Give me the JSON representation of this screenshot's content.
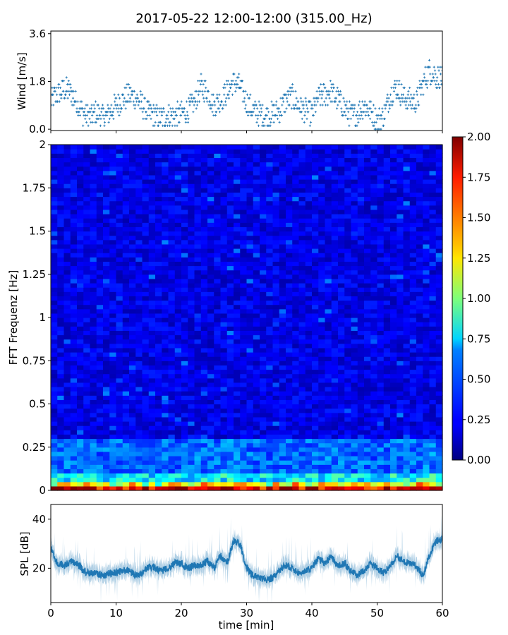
{
  "title": "2017-05-22 12:00-12:00 (315.00_Hz)",
  "chart_data": [
    {
      "type": "scatter",
      "panel": "wind",
      "ylabel": "Wind [m/s]",
      "xlabel": "",
      "xlim": [
        0,
        60
      ],
      "ylim": [
        -0.05,
        3.7
      ],
      "yticks": [
        "0.0",
        "1.8",
        "3.6"
      ],
      "ytick_values": [
        0.0,
        1.8,
        3.6
      ],
      "xtick_values": [
        0,
        10,
        20,
        30,
        40,
        50,
        60
      ],
      "x_ticklabels_shown": false,
      "color": "#1f77b4",
      "marker": "+",
      "trend_x": [
        0,
        1,
        2,
        3,
        4,
        5,
        6,
        7,
        8,
        9,
        10,
        11,
        12,
        13,
        14,
        15,
        16,
        17,
        18,
        19,
        20,
        21,
        22,
        23,
        24,
        25,
        26,
        27,
        28,
        29,
        30,
        31,
        32,
        33,
        34,
        35,
        36,
        37,
        38,
        39,
        40,
        41,
        42,
        43,
        44,
        45,
        46,
        47,
        48,
        49,
        50,
        51,
        52,
        53,
        54,
        55,
        56,
        57,
        58,
        59,
        60
      ],
      "trend_y": [
        1.1,
        1.3,
        1.5,
        1.4,
        1.0,
        0.6,
        0.5,
        0.6,
        0.5,
        0.6,
        0.9,
        1.1,
        1.3,
        1.2,
        0.9,
        0.6,
        0.5,
        0.4,
        0.5,
        0.5,
        0.6,
        0.7,
        1.0,
        1.6,
        1.4,
        0.9,
        1.1,
        1.4,
        1.8,
        1.6,
        1.0,
        0.7,
        0.6,
        0.5,
        0.6,
        0.7,
        1.1,
        1.2,
        0.9,
        0.7,
        0.6,
        1.2,
        1.3,
        1.4,
        1.1,
        0.8,
        0.5,
        0.6,
        0.9,
        0.7,
        0.3,
        0.5,
        1.3,
        1.6,
        1.2,
        1.1,
        1.0,
        1.7,
        2.2,
        2.0,
        1.9
      ]
    },
    {
      "type": "heatmap",
      "panel": "spectrogram",
      "ylabel": "FFT Frequenz [Hz]",
      "xlabel": "",
      "xlim": [
        0,
        60
      ],
      "ylim": [
        0,
        2
      ],
      "yticks": [
        "0",
        "0.25",
        "0.5",
        "0.75",
        "1",
        "1.25",
        "1.5",
        "1.75",
        "2"
      ],
      "ytick_values": [
        0,
        0.25,
        0.5,
        0.75,
        1,
        1.25,
        1.5,
        1.75,
        2
      ],
      "colormap": "jet",
      "colorbar": {
        "range": [
          0,
          2
        ],
        "ticks": [
          "0.00",
          "0.25",
          "0.50",
          "0.75",
          "1.00",
          "1.25",
          "1.50",
          "1.75",
          "2.00"
        ],
        "tick_values": [
          0,
          0.25,
          0.5,
          0.75,
          1.0,
          1.25,
          1.5,
          1.75,
          2.0
        ]
      },
      "background_level": 0.2,
      "low_frequency_peak": 2.0,
      "time_bins": 60,
      "frequency_bins": 80
    },
    {
      "type": "area",
      "panel": "spl",
      "ylabel": "SPL [dB]",
      "xlabel": "time [min]",
      "xlim": [
        0,
        60
      ],
      "ylim": [
        6,
        46
      ],
      "yticks": [
        "20",
        "40"
      ],
      "ytick_values": [
        20,
        40
      ],
      "xticks": [
        "0",
        "10",
        "20",
        "30",
        "40",
        "50",
        "60"
      ],
      "xtick_values": [
        0,
        10,
        20,
        30,
        40,
        50,
        60
      ],
      "color": "#1f77b4",
      "x": [
        0,
        1,
        2,
        3,
        4,
        5,
        6,
        7,
        8,
        9,
        10,
        11,
        12,
        13,
        14,
        15,
        16,
        17,
        18,
        19,
        20,
        21,
        22,
        23,
        24,
        25,
        26,
        27,
        28,
        29,
        30,
        31,
        32,
        33,
        34,
        35,
        36,
        37,
        38,
        39,
        40,
        41,
        42,
        43,
        44,
        45,
        46,
        47,
        48,
        49,
        50,
        51,
        52,
        53,
        54,
        55,
        56,
        57,
        58,
        59,
        60
      ],
      "y": [
        28,
        22,
        21,
        23,
        22,
        19,
        18,
        18,
        17,
        18,
        18,
        19,
        19,
        17,
        18,
        21,
        20,
        19,
        20,
        22,
        22,
        20,
        21,
        21,
        23,
        20,
        25,
        22,
        31,
        30,
        20,
        17,
        16,
        15,
        16,
        19,
        21,
        20,
        18,
        19,
        20,
        24,
        22,
        25,
        21,
        22,
        19,
        17,
        19,
        22,
        20,
        18,
        21,
        25,
        23,
        22,
        21,
        17,
        25,
        31,
        32
      ]
    }
  ]
}
